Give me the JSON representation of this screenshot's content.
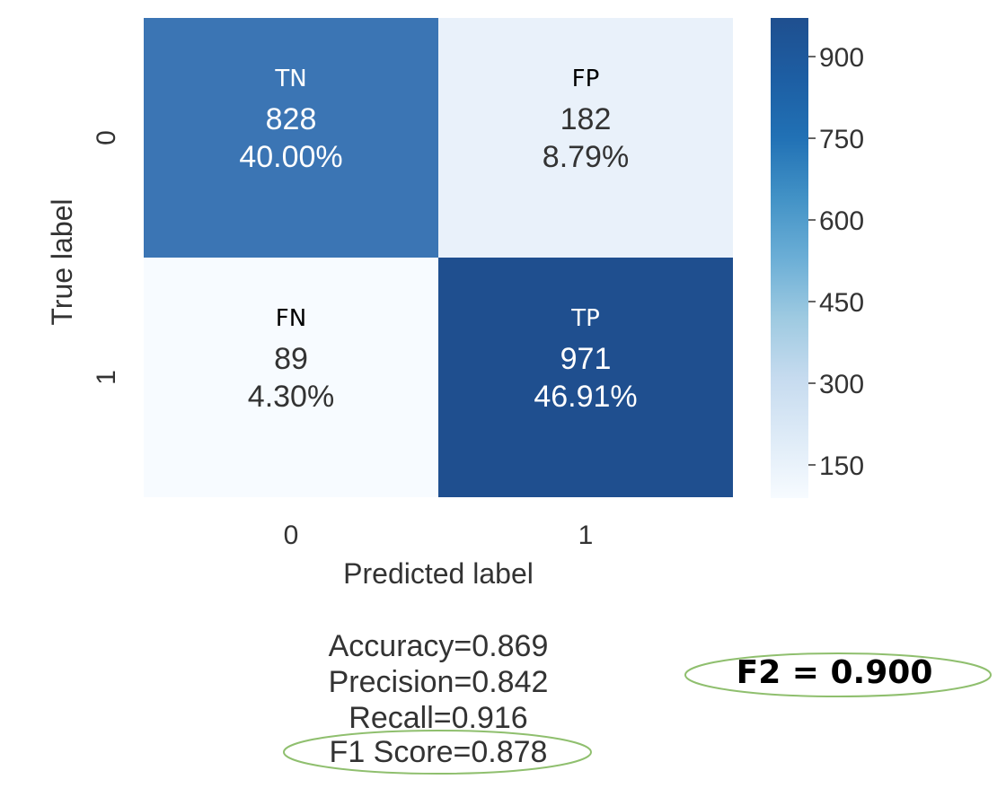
{
  "chart_data": {
    "type": "heatmap",
    "x_categories": [
      "0",
      "1"
    ],
    "y_categories": [
      "0",
      "1"
    ],
    "xlabel": "Predicted label",
    "ylabel": "True label",
    "cells": [
      [
        {
          "tag": "TN",
          "value": 828,
          "value_label": "828",
          "percent_label": "40.00%",
          "color": "#3b75b4"
        },
        {
          "tag": "FP",
          "value": 182,
          "value_label": "182",
          "percent_label": "8.79%",
          "color": "#e9f1fa"
        }
      ],
      [
        {
          "tag": "FN",
          "value": 89,
          "value_label": "89",
          "percent_label": "4.30%",
          "color": "#f7fbff"
        },
        {
          "tag": "TP",
          "value": 971,
          "value_label": "971",
          "percent_label": "46.91%",
          "color": "#1f4f8f"
        }
      ]
    ],
    "colorbar": {
      "min": 89,
      "max": 971,
      "ticks": [
        900,
        750,
        600,
        450,
        300,
        150
      ],
      "colormap": "Blues"
    }
  },
  "metrics": {
    "accuracy": "Accuracy=0.869",
    "precision": "Precision=0.842",
    "recall": "Recall=0.916",
    "f1": "F1 Score=0.878"
  },
  "callout": {
    "f2": "F2 = 0.900"
  },
  "colors": {
    "ellipse_stroke": "#8fbf6e",
    "tick_text": "#333333"
  }
}
